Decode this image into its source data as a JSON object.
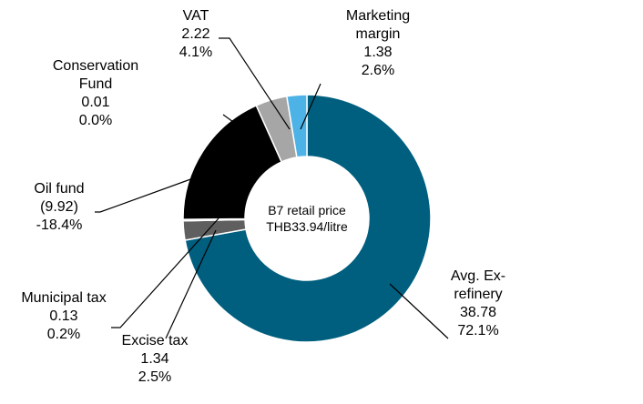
{
  "chart_data": {
    "type": "donut",
    "center_label": [
      "B7 retail price",
      "THB33.94/litre"
    ],
    "categories": [
      "Avg. Ex-refinery",
      "Excise tax",
      "Municipal tax",
      "Oil fund",
      "Conservation Fund",
      "VAT",
      "Marketing margin"
    ],
    "values": [
      38.78,
      1.34,
      0.13,
      -9.92,
      0.01,
      2.22,
      1.38
    ],
    "value_labels": [
      "38.78",
      "1.34",
      "0.13",
      "(9.92)",
      "0.01",
      "2.22",
      "1.38"
    ],
    "percents": [
      72.1,
      2.5,
      0.2,
      -18.4,
      0.0,
      4.1,
      2.6
    ],
    "percent_labels": [
      "72.1%",
      "2.5%",
      "0.2%",
      "-18.4%",
      "0.0%",
      "4.1%",
      "2.6%"
    ],
    "colors": [
      "#005f7f",
      "#5f5f5f",
      "#ffffff",
      "#000000",
      "#ffffff",
      "#a6a6a6",
      "#4db2e6"
    ]
  }
}
